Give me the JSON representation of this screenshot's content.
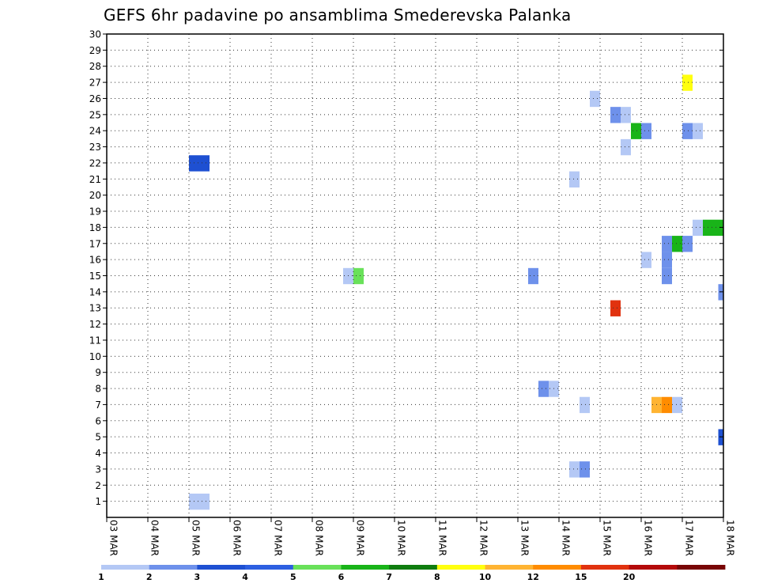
{
  "chart_data": {
    "type": "heatmap",
    "title": "GEFS 6hr padavine po ansamblima Smederevska Palanka",
    "xlabel": "",
    "ylabel": "",
    "x_unit": "days since 03 MAR 00Z",
    "xlim": [
      0,
      15
    ],
    "ylim": [
      0,
      30
    ],
    "x_ticks": [
      {
        "value": 0,
        "label": "03 MAR"
      },
      {
        "value": 1,
        "label": "04 MAR"
      },
      {
        "value": 2,
        "label": "05 MAR"
      },
      {
        "value": 3,
        "label": "06 MAR"
      },
      {
        "value": 4,
        "label": "07 MAR"
      },
      {
        "value": 5,
        "label": "08 MAR"
      },
      {
        "value": 6,
        "label": "09 MAR"
      },
      {
        "value": 7,
        "label": "10 MAR"
      },
      {
        "value": 8,
        "label": "11 MAR"
      },
      {
        "value": 9,
        "label": "12 MAR"
      },
      {
        "value": 10,
        "label": "13 MAR"
      },
      {
        "value": 11,
        "label": "14 MAR"
      },
      {
        "value": 12,
        "label": "15 MAR"
      },
      {
        "value": 13,
        "label": "16 MAR"
      },
      {
        "value": 14,
        "label": "17 MAR"
      },
      {
        "value": 15,
        "label": "18 MAR"
      }
    ],
    "y_ticks": [
      1,
      2,
      3,
      4,
      5,
      6,
      7,
      8,
      9,
      10,
      11,
      12,
      13,
      14,
      15,
      16,
      17,
      18,
      19,
      20,
      21,
      22,
      23,
      24,
      25,
      26,
      27,
      28,
      29,
      30
    ],
    "grid": true,
    "legend": {
      "placement": "bottom",
      "levels": [
        "1",
        "2",
        "3",
        "4",
        "5",
        "6",
        "7",
        "8",
        "10",
        "12",
        "15",
        "20"
      ],
      "colors": [
        "#b4c8f5",
        "#6e91eb",
        "#1e50d2",
        "#2d5fe1",
        "#69e15a",
        "#19b419",
        "#0f7d0f",
        "#ffff0f",
        "#ffb432",
        "#ff8c00",
        "#e1320f",
        "#b40a0a",
        "#780505"
      ]
    },
    "cells": [
      {
        "member": 1,
        "day": 2.0,
        "color": "#b4c8f5"
      },
      {
        "member": 1,
        "day": 2.25,
        "color": "#b4c8f5"
      },
      {
        "member": 22,
        "day": 2.0,
        "color": "#1e50d2"
      },
      {
        "member": 22,
        "day": 2.25,
        "color": "#1e50d2"
      },
      {
        "member": 15,
        "day": 5.75,
        "color": "#b4c8f5"
      },
      {
        "member": 15,
        "day": 6.0,
        "color": "#69e15a"
      },
      {
        "member": 15,
        "day": 10.25,
        "color": "#6e91eb"
      },
      {
        "member": 8,
        "day": 10.5,
        "color": "#6e91eb"
      },
      {
        "member": 8,
        "day": 10.75,
        "color": "#b4c8f5"
      },
      {
        "member": 3,
        "day": 11.25,
        "color": "#b4c8f5"
      },
      {
        "member": 3,
        "day": 11.5,
        "color": "#6e91eb"
      },
      {
        "member": 7,
        "day": 11.5,
        "color": "#b4c8f5"
      },
      {
        "member": 21,
        "day": 11.25,
        "color": "#b4c8f5"
      },
      {
        "member": 26,
        "day": 11.75,
        "color": "#b4c8f5"
      },
      {
        "member": 25,
        "day": 12.25,
        "color": "#6e91eb"
      },
      {
        "member": 25,
        "day": 12.5,
        "color": "#b4c8f5"
      },
      {
        "member": 24,
        "day": 12.75,
        "color": "#19b419"
      },
      {
        "member": 24,
        "day": 13.0,
        "color": "#6e91eb"
      },
      {
        "member": 23,
        "day": 12.5,
        "color": "#b4c8f5"
      },
      {
        "member": 13,
        "day": 12.25,
        "color": "#e1320f"
      },
      {
        "member": 16,
        "day": 13.0,
        "color": "#b4c8f5"
      },
      {
        "member": 7,
        "day": 13.25,
        "color": "#ffb432"
      },
      {
        "member": 7,
        "day": 13.5,
        "color": "#ff8c00"
      },
      {
        "member": 7,
        "day": 13.75,
        "color": "#b4c8f5"
      },
      {
        "member": 15,
        "day": 13.5,
        "color": "#6e91eb"
      },
      {
        "member": 16,
        "day": 13.5,
        "color": "#6e91eb"
      },
      {
        "member": 17,
        "day": 13.5,
        "color": "#6e91eb"
      },
      {
        "member": 17,
        "day": 13.75,
        "color": "#19b419"
      },
      {
        "member": 17,
        "day": 14.0,
        "color": "#6e91eb"
      },
      {
        "member": 24,
        "day": 14.0,
        "color": "#6e91eb"
      },
      {
        "member": 24,
        "day": 14.25,
        "color": "#b4c8f5"
      },
      {
        "member": 27,
        "day": 14.0,
        "color": "#ffff0f"
      },
      {
        "member": 18,
        "day": 14.25,
        "color": "#b4c8f5"
      },
      {
        "member": 18,
        "day": 14.5,
        "color": "#19b419"
      },
      {
        "member": 18,
        "day": 14.75,
        "color": "#19b419"
      },
      {
        "member": 14,
        "day": 14.875,
        "color": "#6e91eb"
      },
      {
        "member": 5,
        "day": 14.875,
        "color": "#1e50d2"
      }
    ]
  }
}
